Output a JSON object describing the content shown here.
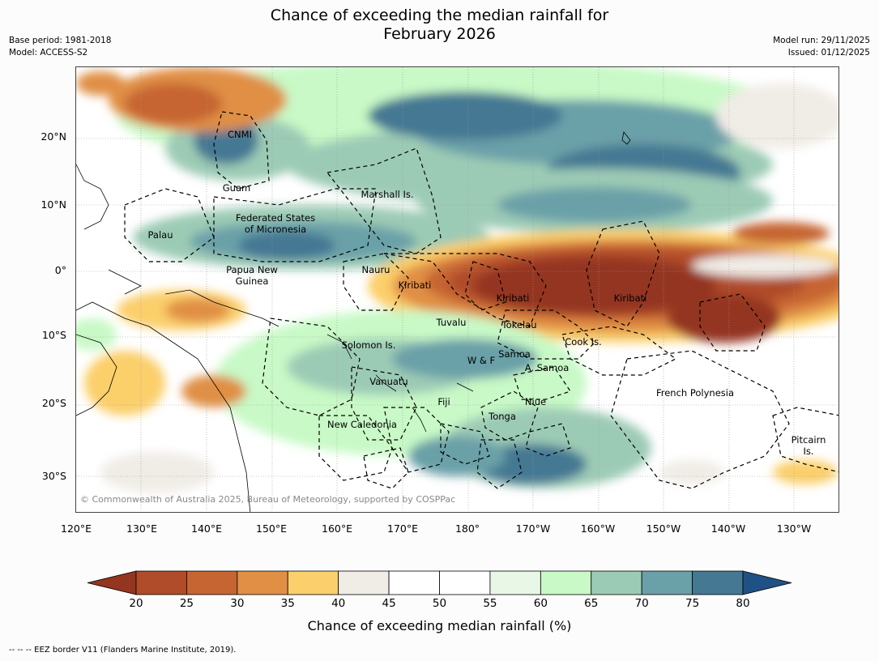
{
  "title": {
    "line1": "Chance of exceeding the median rainfall for",
    "line2": "February 2026"
  },
  "meta": {
    "base_period": "Base period: 1981-2018",
    "model": "Model: ACCESS-S2",
    "model_run": "Model run: 29/11/2025",
    "issued": "Issued: 01/12/2025"
  },
  "map": {
    "lat_labels": [
      "20°N",
      "10°N",
      "0°",
      "10°S",
      "20°S",
      "30°S"
    ],
    "lon_labels": [
      "120°E",
      "130°E",
      "140°E",
      "150°E",
      "160°E",
      "170°E",
      "180°",
      "170°W",
      "160°W",
      "150°W",
      "140°W",
      "130°W"
    ],
    "regions": [
      {
        "name": "CNMI"
      },
      {
        "name": "Guam"
      },
      {
        "name": "Marshall Is."
      },
      {
        "name": "Palau"
      },
      {
        "name": "Federated States\nof Micronesia"
      },
      {
        "name": "Papua New\nGuinea"
      },
      {
        "name": "Nauru"
      },
      {
        "name": "Kiribati"
      },
      {
        "name": "Kiribati"
      },
      {
        "name": "Kiribati"
      },
      {
        "name": "Tuvalu"
      },
      {
        "name": "Tokelau"
      },
      {
        "name": "Cook Is."
      },
      {
        "name": "Solomon Is."
      },
      {
        "name": "W & F"
      },
      {
        "name": "Samoa"
      },
      {
        "name": "A. Samoa"
      },
      {
        "name": "Vanuatu"
      },
      {
        "name": "Fiji"
      },
      {
        "name": "Niue"
      },
      {
        "name": "Tonga"
      },
      {
        "name": "French Polynesia"
      },
      {
        "name": "New Caledonia"
      },
      {
        "name": "Pitcairn\nIs."
      }
    ],
    "copyright": "© Commonwealth of Australia 2025, Bureau of Meteorology, supported by COSPPac"
  },
  "colorbar": {
    "ticks": [
      "20",
      "25",
      "30",
      "35",
      "40",
      "45",
      "50",
      "55",
      "60",
      "65",
      "70",
      "75",
      "80"
    ],
    "colors": [
      "#943520",
      "#b04c2a",
      "#c66532",
      "#e08f45",
      "#fbcf6b",
      "#f0ece6",
      "#ffffff",
      "#ffffff",
      "#e9f7e7",
      "#c8f9c6",
      "#9ccbb5",
      "#6aa0a8",
      "#447893",
      "#1f5185"
    ],
    "label": "Chance of exceeding median rainfall (%)"
  },
  "footer": "--  --  -- EEZ border V11 (Flanders Marine Institute, 2019)."
}
